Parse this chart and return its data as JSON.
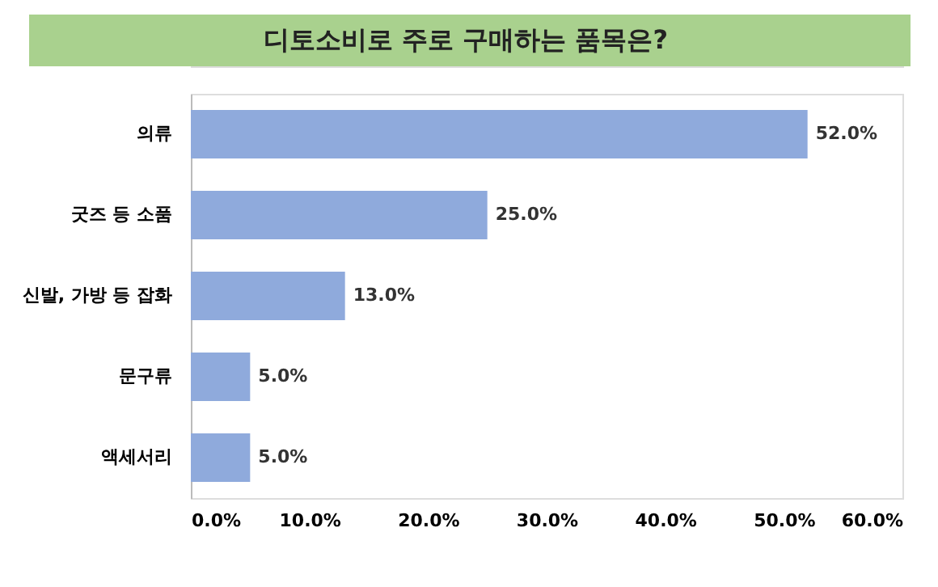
{
  "chart_data": {
    "type": "bar",
    "orientation": "horizontal",
    "title": "디토소비로 주로 구매하는 품목은?",
    "categories": [
      "의류",
      "굿즈 등 소품",
      "신발, 가방 등 잡화",
      "문구류",
      "액세서리"
    ],
    "values": [
      52,
      25,
      13,
      5,
      5
    ],
    "value_labels": [
      "52.0%",
      "25.0%",
      "13.0%",
      "5.0%",
      "5.0%"
    ],
    "color": "#8faadc",
    "xlim": [
      0,
      60
    ],
    "xticks": [
      {
        "value": 0,
        "label": "0.0%"
      },
      {
        "value": 10,
        "label": "10.0%"
      },
      {
        "value": 20,
        "label": "20.0%"
      },
      {
        "value": 30,
        "label": "30.0%"
      },
      {
        "value": 40,
        "label": "40.0%"
      },
      {
        "value": 50,
        "label": "50.0%"
      },
      {
        "value": 60,
        "label": "60.0%"
      }
    ],
    "grid": false
  }
}
